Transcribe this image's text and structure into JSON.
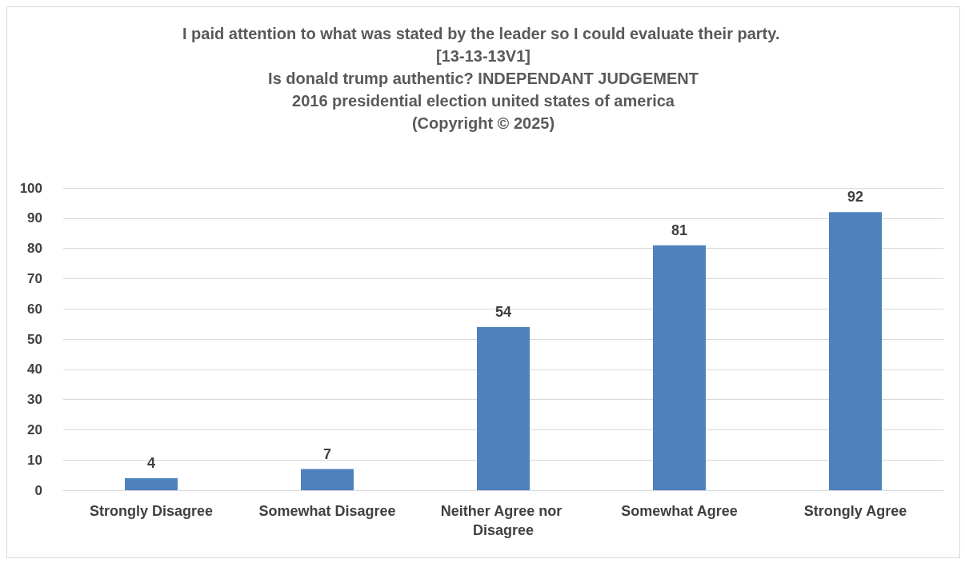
{
  "chart_data": {
    "type": "bar",
    "title": "I paid attention to what was stated by the leader so I could evaluate their party. [13-13-13V1]\nIs donald trump authentic? INDEPENDANT JUDGEMENT\n2016 presidential election united states of america\n(Copyright © 2025)",
    "categories": [
      "Strongly Disagree",
      "Somewhat Disagree",
      "Neither Agree nor Disagree",
      "Somewhat Agree",
      "Strongly Agree"
    ],
    "values": [
      4,
      7,
      54,
      81,
      92
    ],
    "color": "#4f81bd",
    "ylim": [
      0,
      100
    ],
    "yticks": [
      0,
      10,
      20,
      30,
      40,
      50,
      60,
      70,
      80,
      90,
      100
    ],
    "grid": "y",
    "data_labels": true,
    "legend": false
  }
}
